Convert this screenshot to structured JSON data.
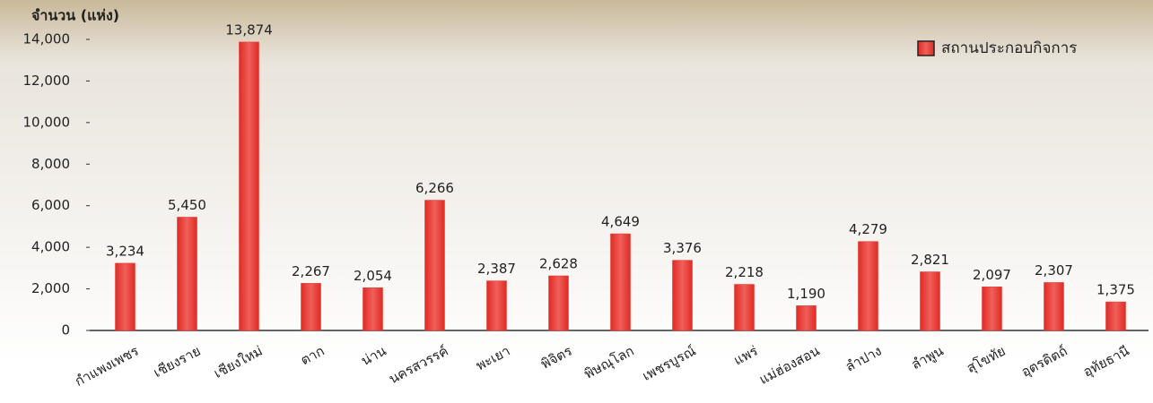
{
  "chart_data": {
    "type": "bar",
    "y_axis_label": "จำนวน (แห่ง)",
    "categories": [
      "กำแพงเพชร",
      "เชียงราย",
      "เชียงใหม่",
      "ตาก",
      "น่าน",
      "นครสวรรค์",
      "พะเยา",
      "พิจิตร",
      "พิษณุโลก",
      "เพชรบูรณ์",
      "แพร่",
      "แม่ฮ่องสอน",
      "ลำปาง",
      "ลำพูน",
      "สุโขทัย",
      "อุตรดิตถ์",
      "อุทัยธานี"
    ],
    "series": [
      {
        "name": "สถานประกอบกิจการ",
        "color": "#e8322c",
        "values": [
          3234,
          5450,
          13874,
          2267,
          2054,
          6266,
          2387,
          2628,
          4649,
          3376,
          2218,
          1190,
          4279,
          2821,
          2097,
          2307,
          1375
        ],
        "value_labels": [
          "3,234",
          "5,450",
          "13,874",
          "2,267",
          "2,054",
          "6,266",
          "2,387",
          "2,628",
          "4,649",
          "3,376",
          "2,218",
          "1,190",
          "4,279",
          "2,821",
          "2,097",
          "2,307",
          "1,375"
        ]
      }
    ],
    "ylim": [
      0,
      14000
    ],
    "yticks": [
      0,
      {
        "value": 2000,
        "label": "2,000"
      },
      {
        "value": 4000,
        "label": "4,000"
      },
      {
        "value": 6000,
        "label": "6,000"
      },
      {
        "value": 8000,
        "label": "8,000"
      },
      {
        "value": 10000,
        "label": "10,000"
      },
      {
        "value": 12000,
        "label": "12,000"
      },
      {
        "value": 14000,
        "label": "14,000"
      }
    ],
    "legend": "top-right"
  }
}
